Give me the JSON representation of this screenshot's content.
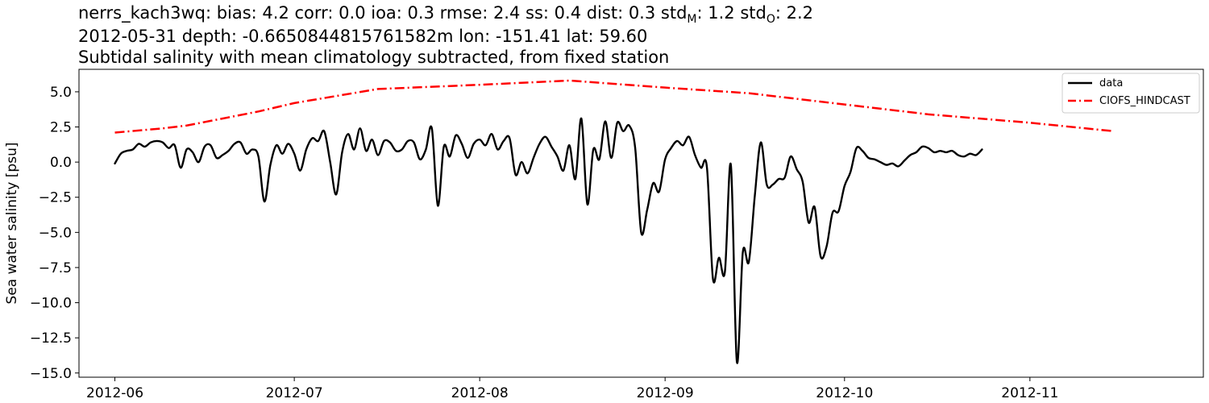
{
  "chart_data": {
    "type": "line",
    "title": {
      "line1": {
        "prefix": "nerrs_kach3wq: bias: 4.2  corr: 0.0  ioa: 0.3  rmse: 2.4  ss: 0.4  dist: 0.3  std",
        "sub_m": "M",
        "mid": ": 1.2  std",
        "sub_o": "O",
        "suffix": ": 2.2"
      },
      "line2": "2012-05-31 depth: -0.6650844815761582m lon: -151.41 lat: 59.60",
      "line3": "Subtidal salinity with mean climatology subtracted, from fixed station"
    },
    "xlabel": "",
    "ylabel": "Sea water salinity [psu]",
    "xlim": [
      "2012-05-26",
      "2012-11-30"
    ],
    "ylim": [
      -15.3,
      6.6
    ],
    "xticks": [
      "2012-06-01",
      "2012-07-01",
      "2012-08-01",
      "2012-09-01",
      "2012-10-01",
      "2012-11-01"
    ],
    "xtick_labels": [
      "2012-06",
      "2012-07",
      "2012-08",
      "2012-09",
      "2012-10",
      "2012-11"
    ],
    "yticks": [
      5.0,
      2.5,
      0.0,
      -2.5,
      -5.0,
      -7.5,
      -10.0,
      -12.5,
      -15.0
    ],
    "ytick_labels": [
      "5.0",
      "2.5",
      "0.0",
      "−2.5",
      "−5.0",
      "−7.5",
      "−10.0",
      "−12.5",
      "−15.0"
    ],
    "grid": false,
    "legend_position": "top-right",
    "series": [
      {
        "name": "data",
        "color": "#000000",
        "style": "solid",
        "points": [
          [
            "2012-06-01",
            -0.1
          ],
          [
            "2012-06-02",
            0.6
          ],
          [
            "2012-06-03",
            0.8
          ],
          [
            "2012-06-04",
            0.9
          ],
          [
            "2012-06-05",
            1.3
          ],
          [
            "2012-06-06",
            1.1
          ],
          [
            "2012-06-07",
            1.4
          ],
          [
            "2012-06-08",
            1.5
          ],
          [
            "2012-06-09",
            1.4
          ],
          [
            "2012-06-10",
            1.0
          ],
          [
            "2012-06-11",
            1.2
          ],
          [
            "2012-06-12",
            -0.4
          ],
          [
            "2012-06-13",
            0.9
          ],
          [
            "2012-06-14",
            0.7
          ],
          [
            "2012-06-15",
            0.0
          ],
          [
            "2012-06-16",
            1.1
          ],
          [
            "2012-06-17",
            1.2
          ],
          [
            "2012-06-18",
            0.3
          ],
          [
            "2012-06-19",
            0.5
          ],
          [
            "2012-06-20",
            0.8
          ],
          [
            "2012-06-21",
            1.3
          ],
          [
            "2012-06-22",
            1.4
          ],
          [
            "2012-06-23",
            0.6
          ],
          [
            "2012-06-24",
            0.9
          ],
          [
            "2012-06-25",
            0.4
          ],
          [
            "2012-06-26",
            -2.8
          ],
          [
            "2012-06-27",
            -0.2
          ],
          [
            "2012-06-28",
            1.2
          ],
          [
            "2012-06-29",
            0.6
          ],
          [
            "2012-06-30",
            1.3
          ],
          [
            "2012-07-01",
            0.6
          ],
          [
            "2012-07-02",
            -0.6
          ],
          [
            "2012-07-03",
            0.9
          ],
          [
            "2012-07-04",
            1.7
          ],
          [
            "2012-07-05",
            1.5
          ],
          [
            "2012-07-06",
            2.2
          ],
          [
            "2012-07-07",
            0.0
          ],
          [
            "2012-07-08",
            -2.3
          ],
          [
            "2012-07-09",
            0.7
          ],
          [
            "2012-07-10",
            2.0
          ],
          [
            "2012-07-11",
            0.9
          ],
          [
            "2012-07-12",
            2.4
          ],
          [
            "2012-07-13",
            0.8
          ],
          [
            "2012-07-14",
            1.6
          ],
          [
            "2012-07-15",
            0.5
          ],
          [
            "2012-07-16",
            1.5
          ],
          [
            "2012-07-17",
            1.4
          ],
          [
            "2012-07-18",
            0.8
          ],
          [
            "2012-07-19",
            0.9
          ],
          [
            "2012-07-20",
            1.5
          ],
          [
            "2012-07-21",
            1.4
          ],
          [
            "2012-07-22",
            0.2
          ],
          [
            "2012-07-23",
            0.9
          ],
          [
            "2012-07-24",
            2.4
          ],
          [
            "2012-07-25",
            -3.1
          ],
          [
            "2012-07-26",
            1.1
          ],
          [
            "2012-07-27",
            0.4
          ],
          [
            "2012-07-28",
            1.9
          ],
          [
            "2012-07-29",
            1.3
          ],
          [
            "2012-07-30",
            0.3
          ],
          [
            "2012-07-31",
            1.3
          ],
          [
            "2012-08-01",
            1.6
          ],
          [
            "2012-08-02",
            1.2
          ],
          [
            "2012-08-03",
            2.0
          ],
          [
            "2012-08-04",
            0.9
          ],
          [
            "2012-08-05",
            1.5
          ],
          [
            "2012-08-06",
            1.7
          ],
          [
            "2012-08-07",
            -0.9
          ],
          [
            "2012-08-08",
            0.0
          ],
          [
            "2012-08-09",
            -0.8
          ],
          [
            "2012-08-10",
            0.3
          ],
          [
            "2012-08-11",
            1.3
          ],
          [
            "2012-08-12",
            1.8
          ],
          [
            "2012-08-13",
            1.1
          ],
          [
            "2012-08-14",
            0.4
          ],
          [
            "2012-08-15",
            -0.6
          ],
          [
            "2012-08-16",
            1.2
          ],
          [
            "2012-08-17",
            -1.2
          ],
          [
            "2012-08-18",
            3.1
          ],
          [
            "2012-08-19",
            -3.0
          ],
          [
            "2012-08-20",
            0.9
          ],
          [
            "2012-08-21",
            0.2
          ],
          [
            "2012-08-22",
            2.9
          ],
          [
            "2012-08-23",
            0.3
          ],
          [
            "2012-08-24",
            2.8
          ],
          [
            "2012-08-25",
            2.2
          ],
          [
            "2012-08-26",
            2.6
          ],
          [
            "2012-08-27",
            1.0
          ],
          [
            "2012-08-28",
            -5.0
          ],
          [
            "2012-08-29",
            -3.4
          ],
          [
            "2012-08-30",
            -1.5
          ],
          [
            "2012-08-31",
            -2.1
          ],
          [
            "2012-09-01",
            0.2
          ],
          [
            "2012-09-02",
            1.0
          ],
          [
            "2012-09-03",
            1.5
          ],
          [
            "2012-09-04",
            1.2
          ],
          [
            "2012-09-05",
            1.8
          ],
          [
            "2012-09-06",
            0.5
          ],
          [
            "2012-09-07",
            -0.4
          ],
          [
            "2012-09-08",
            -0.4
          ],
          [
            "2012-09-09",
            -8.3
          ],
          [
            "2012-09-10",
            -6.8
          ],
          [
            "2012-09-11",
            -7.8
          ],
          [
            "2012-09-12",
            -0.2
          ],
          [
            "2012-09-13",
            -14.2
          ],
          [
            "2012-09-14",
            -6.4
          ],
          [
            "2012-09-15",
            -7.1
          ],
          [
            "2012-09-16",
            -2.4
          ],
          [
            "2012-09-17",
            1.4
          ],
          [
            "2012-09-18",
            -1.6
          ],
          [
            "2012-09-19",
            -1.6
          ],
          [
            "2012-09-20",
            -1.2
          ],
          [
            "2012-09-21",
            -1.1
          ],
          [
            "2012-09-22",
            0.4
          ],
          [
            "2012-09-23",
            -0.5
          ],
          [
            "2012-09-24",
            -1.4
          ],
          [
            "2012-09-25",
            -4.3
          ],
          [
            "2012-09-26",
            -3.2
          ],
          [
            "2012-09-27",
            -6.7
          ],
          [
            "2012-09-28",
            -6.0
          ],
          [
            "2012-09-29",
            -3.6
          ],
          [
            "2012-09-30",
            -3.5
          ],
          [
            "2012-10-01",
            -1.7
          ],
          [
            "2012-10-02",
            -0.7
          ],
          [
            "2012-10-03",
            1.0
          ],
          [
            "2012-10-04",
            0.8
          ],
          [
            "2012-10-05",
            0.3
          ],
          [
            "2012-10-06",
            0.2
          ],
          [
            "2012-10-07",
            0.0
          ],
          [
            "2012-10-08",
            -0.2
          ],
          [
            "2012-10-09",
            -0.1
          ],
          [
            "2012-10-10",
            -0.3
          ],
          [
            "2012-10-11",
            0.1
          ],
          [
            "2012-10-12",
            0.5
          ],
          [
            "2012-10-13",
            0.7
          ],
          [
            "2012-10-14",
            1.1
          ],
          [
            "2012-10-15",
            1.0
          ],
          [
            "2012-10-16",
            0.7
          ],
          [
            "2012-10-17",
            0.8
          ],
          [
            "2012-10-18",
            0.7
          ],
          [
            "2012-10-19",
            0.8
          ],
          [
            "2012-10-20",
            0.5
          ],
          [
            "2012-10-21",
            0.4
          ],
          [
            "2012-10-22",
            0.6
          ],
          [
            "2012-10-23",
            0.5
          ],
          [
            "2012-10-24",
            0.9
          ]
        ]
      },
      {
        "name": "CIOFS_HINDCAST",
        "color": "#ff0000",
        "style": "dashdot",
        "points": [
          [
            "2012-06-01",
            2.1
          ],
          [
            "2012-06-09",
            2.4
          ],
          [
            "2012-06-13",
            2.6
          ],
          [
            "2012-06-25",
            3.6
          ],
          [
            "2012-07-01",
            4.2
          ],
          [
            "2012-07-15",
            5.2
          ],
          [
            "2012-08-01",
            5.5
          ],
          [
            "2012-08-16",
            5.8
          ],
          [
            "2012-09-01",
            5.3
          ],
          [
            "2012-09-15",
            4.9
          ],
          [
            "2012-10-01",
            4.1
          ],
          [
            "2012-10-15",
            3.4
          ],
          [
            "2012-11-01",
            2.8
          ],
          [
            "2012-11-15",
            2.2
          ]
        ]
      }
    ]
  }
}
